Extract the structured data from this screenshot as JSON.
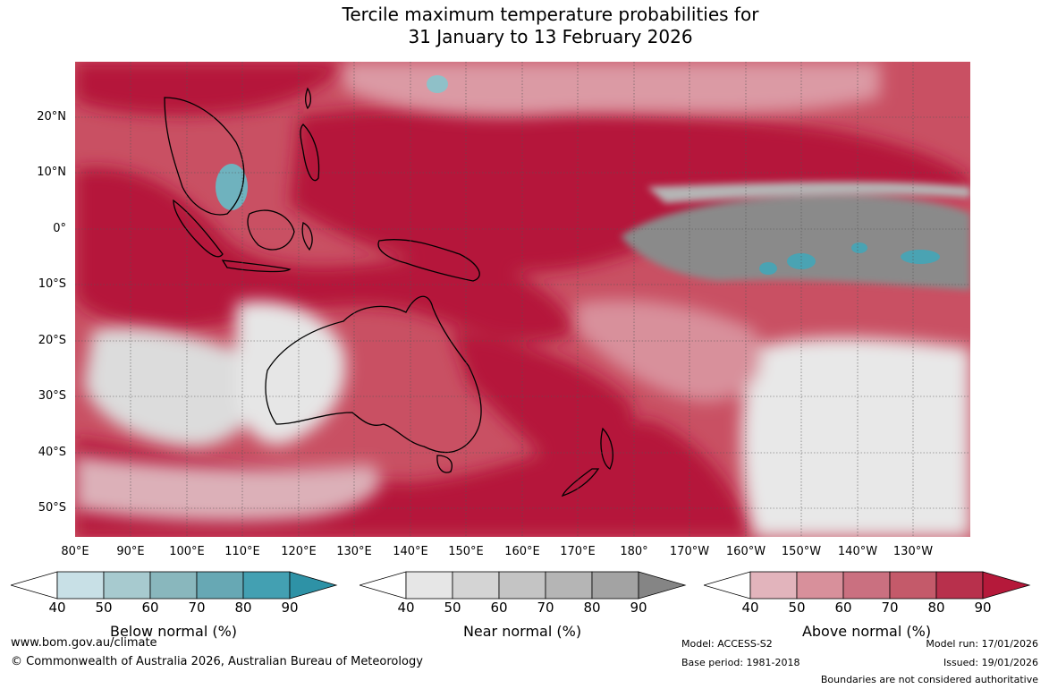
{
  "title": {
    "line1": "Tercile maximum temperature probabilities for",
    "line2": "31 January to 13 February 2026"
  },
  "map": {
    "lat_labels": [
      "20°N",
      "10°N",
      "0°",
      "10°S",
      "20°S",
      "30°S",
      "40°S",
      "50°S"
    ],
    "lon_labels": [
      "80°E",
      "90°E",
      "100°E",
      "110°E",
      "120°E",
      "130°E",
      "140°E",
      "150°E",
      "160°E",
      "170°E",
      "180°",
      "170°W",
      "160°W",
      "150°W",
      "140°W",
      "130°W"
    ],
    "colors": {
      "above_90": "#b5193a",
      "above_80": "#c9304d",
      "above_70": "#c95063",
      "above_60": "#d0737f",
      "above_50": "#db9aa4",
      "near": "#dcdcdc",
      "near_dark": "#8a8a8a",
      "below": "#4aa3b3",
      "land_outline": "#000000"
    }
  },
  "colorbars": [
    {
      "id": "below",
      "title": "Below normal (%)",
      "ticks": [
        "40",
        "50",
        "60",
        "70",
        "80",
        "90"
      ],
      "colors": [
        "#ffffff",
        "#c8e0e6",
        "#a7cacf",
        "#89b7bd",
        "#67a8b4",
        "#43a0b2",
        "#2e92a6"
      ]
    },
    {
      "id": "near",
      "title": "Near normal (%)",
      "ticks": [
        "40",
        "50",
        "60",
        "70",
        "80",
        "90"
      ],
      "colors": [
        "#ffffff",
        "#e6e6e6",
        "#d4d4d4",
        "#c4c4c4",
        "#b5b5b5",
        "#a3a3a3",
        "#858585"
      ]
    },
    {
      "id": "above",
      "title": "Above normal (%)",
      "ticks": [
        "40",
        "50",
        "60",
        "70",
        "80",
        "90"
      ],
      "colors": [
        "#ffffff",
        "#e2b4bc",
        "#d8909b",
        "#ca7080",
        "#c45a6a",
        "#b8304c",
        "#b5193a"
      ]
    }
  ],
  "footer": {
    "website": "www.bom.gov.au/climate",
    "copyright": "© Commonwealth of Australia 2026, Australian Bureau of Meteorology",
    "model": "Model: ACCESS-S2",
    "base_period": "Base period: 1981-2018",
    "model_run": "Model run: 17/01/2026",
    "issued": "Issued: 19/01/2026",
    "disclaimer": "Boundaries are not considered authoritative"
  }
}
